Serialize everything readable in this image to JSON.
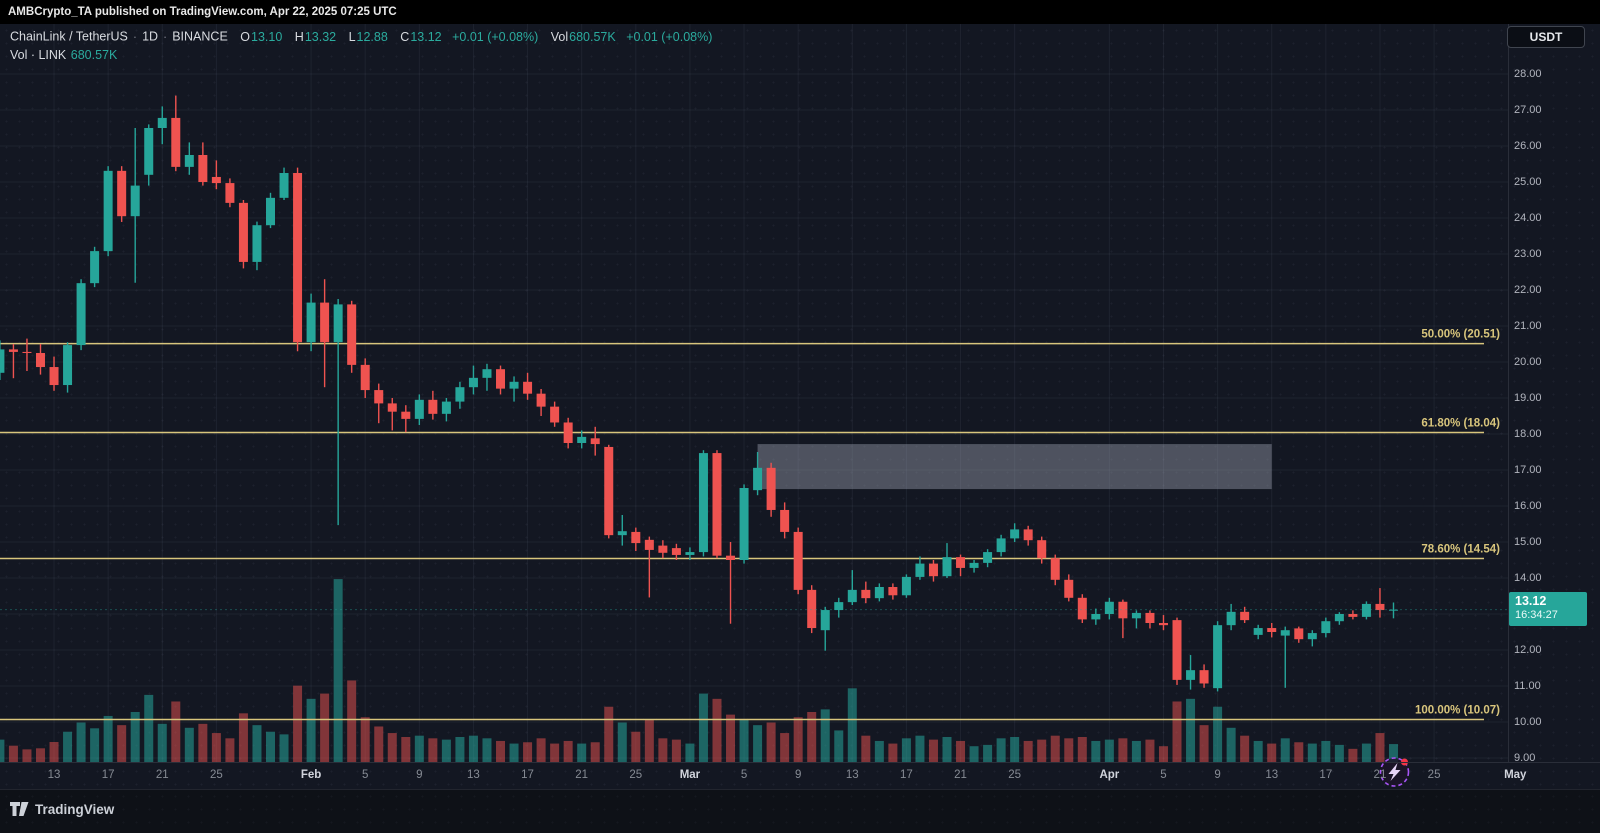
{
  "attribution": "AMBCrypto_TA published on TradingView.com, Apr 22, 2025 07:25 UTC",
  "header": {
    "symbol": "ChainLink / TetherUS",
    "sep": "·",
    "interval": "1D",
    "exchange": "BINANCE",
    "open_label": "O",
    "open": "13.10",
    "high_label": "H",
    "high": "13.32",
    "low_label": "L",
    "low": "12.88",
    "close_label": "C",
    "close": "13.12",
    "change": "+0.01 (+0.08%)",
    "volume_label": "Vol",
    "volume": "680.57K",
    "volume_change": "+0.01 (+0.08%)",
    "indicator_label": "Vol · LINK",
    "indicator_value": "680.57K"
  },
  "currency_button": {
    "label": "USDT"
  },
  "price_badge": {
    "price": "13.12",
    "countdown": "16:34:27"
  },
  "logo": {
    "label": "TradingView"
  },
  "icons": {
    "events_marker": "lightning-icon",
    "events_marker_note": "purple dashed circle with lightning bolt and red notification dot"
  },
  "colors": {
    "up": "#26a69a",
    "down": "#ef5350",
    "vol_up": "rgba(38,166,154,0.55)",
    "vol_down": "rgba(239,83,80,0.50)",
    "fib": "#d8c57c",
    "badge_bg": "#26a69a",
    "chart_bg": "#131722",
    "grid": "rgba(170,180,205,0.08)",
    "axis_text": "#b2b5be",
    "box_fill": "rgba(150,155,170,0.45)",
    "marker_purple": "#a855f7",
    "marker_dot": "#f23645"
  },
  "price_scale": {
    "min": 9,
    "max": 28,
    "step": 1
  },
  "time_scale": {
    "ticks": [
      [
        "13",
        4
      ],
      [
        "17",
        8
      ],
      [
        "21",
        12
      ],
      [
        "25",
        16
      ],
      [
        "Feb",
        23
      ],
      [
        "5",
        27
      ],
      [
        "9",
        31
      ],
      [
        "13",
        35
      ],
      [
        "17",
        39
      ],
      [
        "21",
        43
      ],
      [
        "25",
        47
      ],
      [
        "Mar",
        51
      ],
      [
        "5",
        55
      ],
      [
        "9",
        59
      ],
      [
        "13",
        63
      ],
      [
        "17",
        67
      ],
      [
        "21",
        71
      ],
      [
        "25",
        75
      ],
      [
        "Apr",
        82
      ],
      [
        "5",
        86
      ],
      [
        "9",
        90
      ],
      [
        "13",
        94
      ],
      [
        "17",
        98
      ],
      [
        "21",
        102
      ],
      [
        "25",
        106
      ],
      [
        "May",
        112
      ]
    ]
  },
  "fib_levels": [
    {
      "label": "50.00% (20.51)",
      "pct": "50.00%",
      "price": 20.51
    },
    {
      "label": "61.80% (18.04)",
      "pct": "61.80%",
      "price": 18.04
    },
    {
      "label": "78.60% (14.54)",
      "pct": "78.60%",
      "price": 14.54
    },
    {
      "label": "100.00% (10.07)",
      "pct": "100.00%",
      "price": 10.07
    }
  ],
  "chart_data": {
    "type": "candlestick",
    "symbol": "LINK/USDT",
    "exchange": "BINANCE",
    "interval": "1D",
    "date_range": "Jan 9 - Apr 22, 2025",
    "ylim": [
      8.95,
      28.6
    ],
    "grid": true,
    "last_price": 13.12,
    "range_box": {
      "from": "Mar 6",
      "from_index": 56,
      "to": "Apr 13",
      "to_index": 94,
      "price_top": 17.72,
      "price_bottom": 16.47
    },
    "candle_fields": [
      "date",
      "open",
      "high",
      "low",
      "close",
      "volume_k"
    ],
    "candles": [
      [
        "Jan 9",
        19.7,
        20.6,
        19.5,
        20.35,
        850
      ],
      [
        "Jan 10",
        20.35,
        20.5,
        19.55,
        20.28,
        620
      ],
      [
        "Jan 11",
        20.28,
        20.65,
        19.75,
        20.25,
        480
      ],
      [
        "Jan 12",
        20.25,
        20.5,
        19.65,
        19.86,
        520
      ],
      [
        "Jan 13",
        19.86,
        20.15,
        19.2,
        19.36,
        760
      ],
      [
        "Jan 14",
        19.36,
        20.55,
        19.15,
        20.47,
        1150
      ],
      [
        "Jan 15",
        20.47,
        22.3,
        20.33,
        22.19,
        1500
      ],
      [
        "Jan 16",
        22.19,
        23.2,
        22.08,
        23.08,
        1280
      ],
      [
        "Jan 17",
        23.08,
        25.44,
        22.94,
        25.31,
        1750
      ],
      [
        "Jan 18",
        25.31,
        25.44,
        23.89,
        24.05,
        1400
      ],
      [
        "Jan 19",
        24.05,
        26.5,
        22.2,
        24.9,
        1900
      ],
      [
        "Jan 20",
        25.2,
        26.6,
        24.9,
        26.5,
        2550
      ],
      [
        "Jan 21",
        26.5,
        27.1,
        26.05,
        26.78,
        1450
      ],
      [
        "Jan 22",
        26.78,
        27.4,
        25.3,
        25.42,
        2300
      ],
      [
        "Jan 23",
        25.42,
        26.1,
        25.2,
        25.75,
        1300
      ],
      [
        "Jan 24",
        25.75,
        26.1,
        24.9,
        25.0,
        1450
      ],
      [
        "Jan 25",
        25.14,
        25.6,
        24.8,
        24.97,
        1100
      ],
      [
        "Jan 26",
        24.97,
        25.1,
        24.3,
        24.42,
        900
      ],
      [
        "Jan 27",
        24.42,
        24.5,
        22.6,
        22.78,
        1850
      ],
      [
        "Jan 28",
        22.78,
        23.9,
        22.55,
        23.8,
        1400
      ],
      [
        "Jan 29",
        23.8,
        24.7,
        23.72,
        24.56,
        1150
      ],
      [
        "Jan 30",
        24.56,
        25.4,
        24.5,
        25.25,
        1050
      ],
      [
        "Jan 31",
        25.25,
        25.4,
        20.3,
        20.55,
        2900
      ],
      [
        "Feb 1",
        20.55,
        21.9,
        20.3,
        21.65,
        2400
      ],
      [
        "Feb 2",
        21.65,
        22.3,
        19.3,
        20.55,
        2600
      ],
      [
        "Feb 3",
        20.55,
        21.75,
        15.47,
        21.6,
        6950
      ],
      [
        "Feb 4",
        21.6,
        21.7,
        19.7,
        19.92,
        3100
      ],
      [
        "Feb 5",
        19.92,
        20.1,
        19.0,
        19.22,
        1700
      ],
      [
        "Feb 6",
        19.22,
        19.4,
        18.3,
        18.85,
        1350
      ],
      [
        "Feb 7",
        18.85,
        19.0,
        18.1,
        18.62,
        1100
      ],
      [
        "Feb 8",
        18.62,
        18.8,
        18.05,
        18.42,
        950
      ],
      [
        "Feb 9",
        18.42,
        19.1,
        18.25,
        18.95,
        1000
      ],
      [
        "Feb 10",
        18.95,
        19.2,
        18.4,
        18.56,
        900
      ],
      [
        "Feb 11",
        18.56,
        19.0,
        18.35,
        18.9,
        850
      ],
      [
        "Feb 12",
        18.9,
        19.45,
        18.7,
        19.3,
        950
      ],
      [
        "Feb 13",
        19.3,
        19.9,
        19.1,
        19.56,
        1000
      ],
      [
        "Feb 14",
        19.56,
        19.95,
        19.2,
        19.8,
        900
      ],
      [
        "Feb 15",
        19.8,
        19.9,
        19.1,
        19.26,
        800
      ],
      [
        "Feb 16",
        19.26,
        19.6,
        18.9,
        19.45,
        700
      ],
      [
        "Feb 17",
        19.45,
        19.7,
        18.95,
        19.12,
        750
      ],
      [
        "Feb 18",
        19.12,
        19.25,
        18.5,
        18.76,
        900
      ],
      [
        "Feb 19",
        18.76,
        18.9,
        18.2,
        18.32,
        700
      ],
      [
        "Feb 20",
        18.32,
        18.45,
        17.6,
        17.75,
        800
      ],
      [
        "Feb 21",
        17.75,
        18.1,
        17.6,
        17.92,
        700
      ],
      [
        "Feb 22",
        17.88,
        18.2,
        17.4,
        17.72,
        750
      ],
      [
        "Feb 23",
        17.64,
        17.7,
        15.1,
        15.19,
        2100
      ],
      [
        "Feb 24",
        15.19,
        15.75,
        14.9,
        15.3,
        1500
      ],
      [
        "Feb 25",
        15.28,
        15.4,
        14.75,
        14.97,
        1150
      ],
      [
        "Feb 26",
        15.06,
        15.15,
        13.46,
        14.78,
        1600
      ],
      [
        "Feb 27",
        14.9,
        15.05,
        14.55,
        14.7,
        900
      ],
      [
        "Feb 28",
        14.83,
        14.95,
        14.5,
        14.64,
        850
      ],
      [
        "Mar 1",
        14.64,
        14.85,
        14.5,
        14.72,
        700
      ],
      [
        "Mar 2",
        14.72,
        17.55,
        14.6,
        17.47,
        2600
      ],
      [
        "Mar 3",
        17.47,
        17.55,
        14.55,
        14.62,
        2400
      ],
      [
        "Mar 4",
        14.62,
        15.0,
        12.73,
        14.5,
        1800
      ],
      [
        "Mar 5",
        14.5,
        16.6,
        14.4,
        16.5,
        1600
      ],
      [
        "Mar 6",
        16.44,
        17.5,
        16.3,
        17.06,
        1400
      ],
      [
        "Mar 7",
        17.06,
        17.2,
        15.7,
        15.89,
        1500
      ],
      [
        "Mar 8",
        15.89,
        16.1,
        15.1,
        15.28,
        1100
      ],
      [
        "Mar 9",
        15.28,
        15.4,
        13.55,
        13.67,
        1700
      ],
      [
        "Mar 10",
        13.67,
        13.8,
        12.47,
        12.61,
        1900
      ],
      [
        "Mar 11",
        12.55,
        13.2,
        11.98,
        13.11,
        2000
      ],
      [
        "Mar 12",
        13.11,
        13.45,
        12.9,
        13.33,
        1200
      ],
      [
        "Mar 13",
        13.33,
        14.22,
        13.25,
        13.67,
        2800
      ],
      [
        "Mar 14",
        13.67,
        13.9,
        13.3,
        13.44,
        1000
      ],
      [
        "Mar 15",
        13.44,
        13.85,
        13.35,
        13.75,
        800
      ],
      [
        "Mar 16",
        13.75,
        13.85,
        13.4,
        13.52,
        700
      ],
      [
        "Mar 17",
        13.52,
        14.1,
        13.45,
        14.03,
        900
      ],
      [
        "Mar 18",
        14.03,
        14.6,
        13.95,
        14.4,
        1000
      ],
      [
        "Mar 19",
        14.4,
        14.5,
        13.9,
        14.05,
        850
      ],
      [
        "Mar 20",
        14.05,
        14.97,
        14.0,
        14.58,
        950
      ],
      [
        "Mar 21",
        14.58,
        14.65,
        14.05,
        14.28,
        800
      ],
      [
        "Mar 22",
        14.28,
        14.5,
        14.15,
        14.42,
        600
      ],
      [
        "Mar 23",
        14.42,
        14.8,
        14.3,
        14.72,
        650
      ],
      [
        "Mar 24",
        14.72,
        15.2,
        14.6,
        15.1,
        900
      ],
      [
        "Mar 25",
        15.1,
        15.52,
        15.0,
        15.35,
        950
      ],
      [
        "Mar 26",
        15.35,
        15.45,
        14.9,
        15.05,
        800
      ],
      [
        "Mar 27",
        15.05,
        15.15,
        14.4,
        14.55,
        850
      ],
      [
        "Mar 28",
        14.55,
        14.65,
        13.8,
        13.95,
        1000
      ],
      [
        "Mar 29",
        13.95,
        14.1,
        13.35,
        13.45,
        900
      ],
      [
        "Mar 30",
        13.45,
        13.55,
        12.75,
        12.85,
        950
      ],
      [
        "Mar 31",
        12.85,
        13.15,
        12.7,
        13.0,
        800
      ],
      [
        "Apr 1",
        13.0,
        13.45,
        12.85,
        13.34,
        850
      ],
      [
        "Apr 2",
        13.34,
        13.4,
        12.33,
        12.88,
        900
      ],
      [
        "Apr 3",
        12.88,
        13.1,
        12.6,
        13.03,
        800
      ],
      [
        "Apr 4",
        13.03,
        13.1,
        12.6,
        12.75,
        850
      ],
      [
        "Apr 5",
        12.75,
        12.97,
        12.55,
        12.69,
        600
      ],
      [
        "Apr 6",
        12.83,
        12.9,
        11.03,
        11.17,
        2300
      ],
      [
        "Apr 7",
        11.17,
        11.86,
        10.9,
        11.44,
        2400
      ],
      [
        "Apr 8",
        11.44,
        11.6,
        10.95,
        11.07,
        1400
      ],
      [
        "Apr 9",
        10.94,
        12.8,
        10.85,
        12.69,
        2100
      ],
      [
        "Apr 10",
        12.69,
        13.28,
        12.55,
        13.06,
        1300
      ],
      [
        "Apr 11",
        13.06,
        13.2,
        12.75,
        12.83,
        1000
      ],
      [
        "Apr 12",
        12.42,
        12.7,
        12.3,
        12.61,
        800
      ],
      [
        "Apr 13",
        12.61,
        12.75,
        12.35,
        12.5,
        700
      ],
      [
        "Apr 14",
        12.4,
        12.65,
        10.95,
        12.55,
        900
      ],
      [
        "Apr 15",
        12.6,
        12.65,
        12.2,
        12.3,
        750
      ],
      [
        "Apr 16",
        12.3,
        12.55,
        12.1,
        12.47,
        700
      ],
      [
        "Apr 17",
        12.47,
        12.9,
        12.35,
        12.8,
        800
      ],
      [
        "Apr 18",
        12.8,
        13.05,
        12.7,
        13.0,
        650
      ],
      [
        "Apr 19",
        13.0,
        13.1,
        12.85,
        12.92,
        500
      ],
      [
        "Apr 20",
        12.92,
        13.35,
        12.85,
        13.28,
        700
      ],
      [
        "Apr 21",
        13.28,
        13.72,
        12.9,
        13.11,
        1100
      ],
      [
        "Apr 22",
        13.1,
        13.32,
        12.88,
        13.12,
        681
      ]
    ]
  }
}
